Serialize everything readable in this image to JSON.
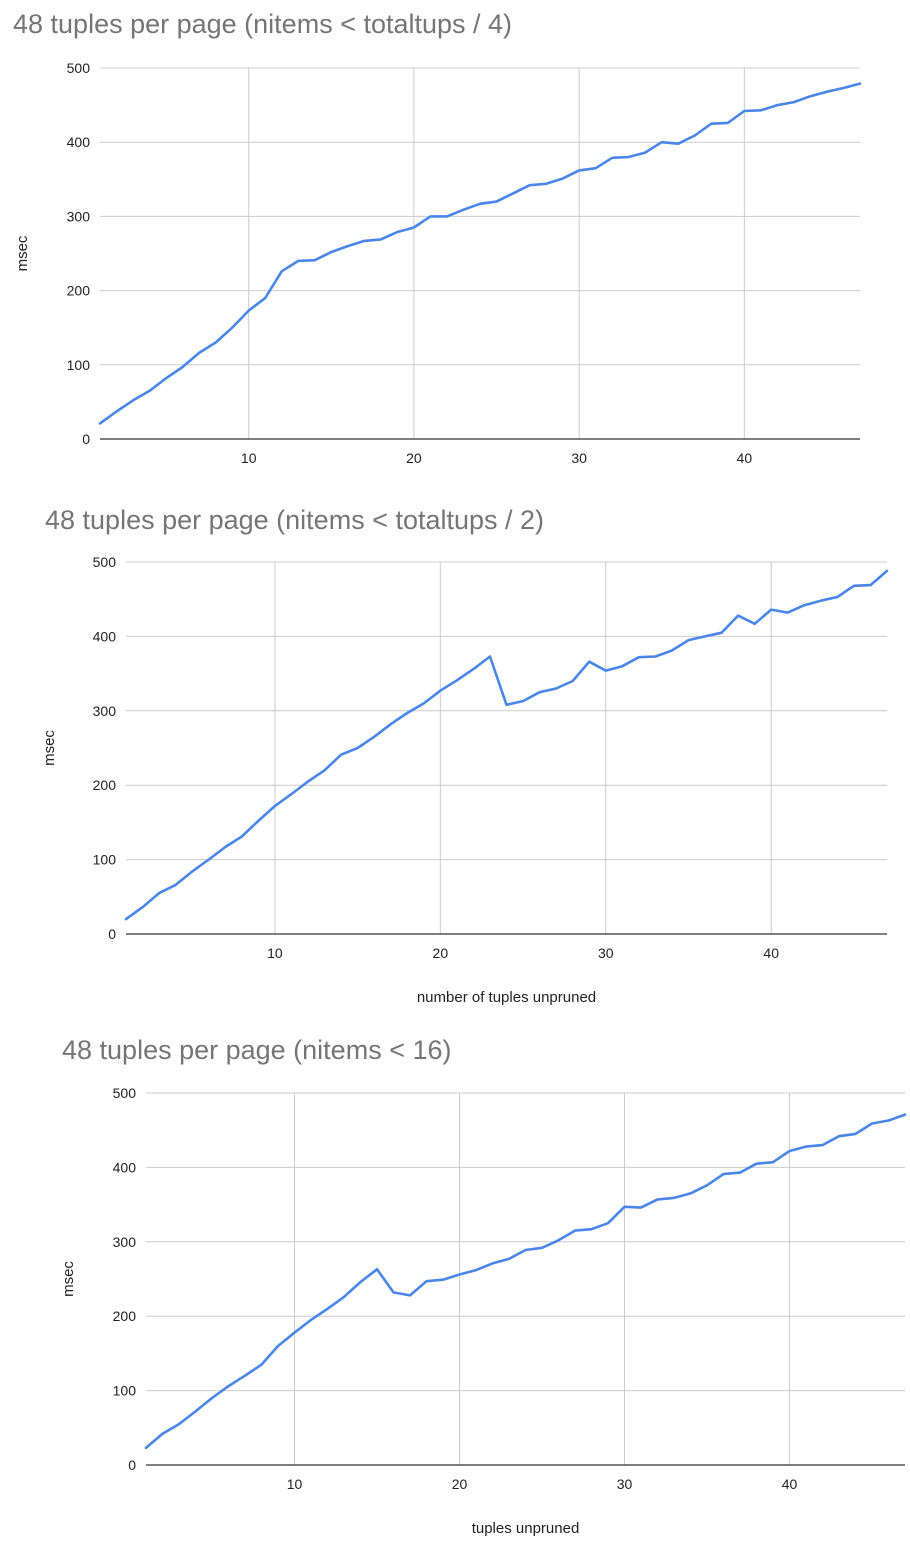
{
  "colors": {
    "series": "#4a86e8",
    "grid": "#cccccc",
    "title": "#757575",
    "axis": "#333333"
  },
  "chart_data": [
    {
      "type": "line",
      "title": "48 tuples per page (nitems < totaltups / 4)",
      "xlabel": "",
      "ylabel": "msec",
      "xlim": [
        1,
        47
      ],
      "ylim": [
        0,
        500
      ],
      "xticks": [
        10,
        20,
        30,
        40
      ],
      "yticks": [
        0,
        100,
        200,
        300,
        400,
        500
      ],
      "grid": true,
      "x": [
        1,
        2,
        3,
        4,
        5,
        6,
        7,
        8,
        9,
        10,
        11,
        12,
        13,
        14,
        15,
        16,
        17,
        18,
        19,
        20,
        21,
        22,
        23,
        24,
        25,
        26,
        27,
        28,
        29,
        30,
        31,
        32,
        33,
        34,
        35,
        36,
        37,
        38,
        39,
        40,
        41,
        42,
        43,
        44,
        45,
        46,
        47
      ],
      "series": [
        {
          "values": [
            21,
            37,
            52,
            65,
            82,
            97,
            116,
            130,
            150,
            173,
            190,
            226,
            240,
            241,
            252,
            260,
            267,
            269,
            279,
            285,
            300,
            300,
            309,
            317,
            320,
            331,
            342,
            344,
            351,
            362,
            365,
            379,
            380,
            386,
            400,
            398,
            409,
            425,
            426,
            442,
            443,
            450,
            454,
            462,
            468,
            473,
            479
          ]
        }
      ]
    },
    {
      "type": "line",
      "title": "48 tuples per page (nitems < totaltups / 2)",
      "xlabel": "number of tuples unpruned",
      "ylabel": "msec",
      "xlim": [
        1,
        47
      ],
      "ylim": [
        0,
        500
      ],
      "xticks": [
        10,
        20,
        30,
        40
      ],
      "yticks": [
        0,
        100,
        200,
        300,
        400,
        500
      ],
      "grid": true,
      "x": [
        1,
        2,
        3,
        4,
        5,
        6,
        7,
        8,
        9,
        10,
        11,
        12,
        13,
        14,
        15,
        16,
        17,
        18,
        19,
        20,
        21,
        22,
        23,
        24,
        25,
        26,
        27,
        28,
        29,
        30,
        31,
        32,
        33,
        34,
        35,
        36,
        37,
        38,
        39,
        40,
        41,
        42,
        43,
        44,
        45,
        46,
        47
      ],
      "series": [
        {
          "values": [
            20,
            36,
            55,
            66,
            84,
            100,
            117,
            131,
            152,
            172,
            188,
            205,
            220,
            241,
            250,
            265,
            282,
            297,
            310,
            327,
            341,
            356,
            373,
            308,
            313,
            325,
            330,
            340,
            366,
            354,
            360,
            372,
            373,
            381,
            395,
            400,
            405,
            428,
            417,
            436,
            432,
            442,
            448,
            453,
            468,
            469,
            488
          ]
        }
      ]
    },
    {
      "type": "line",
      "title": "48 tuples per page (nitems < 16)",
      "xlabel": "tuples unpruned",
      "ylabel": "msec",
      "xlim": [
        1,
        47
      ],
      "ylim": [
        0,
        500
      ],
      "xticks": [
        10,
        20,
        30,
        40
      ],
      "yticks": [
        0,
        100,
        200,
        300,
        400,
        500
      ],
      "grid": true,
      "x": [
        1,
        2,
        3,
        4,
        5,
        6,
        7,
        8,
        9,
        10,
        11,
        12,
        13,
        14,
        15,
        16,
        17,
        18,
        19,
        20,
        21,
        22,
        23,
        24,
        25,
        26,
        27,
        28,
        29,
        30,
        31,
        32,
        33,
        34,
        35,
        36,
        37,
        38,
        39,
        40,
        41,
        42,
        43,
        44,
        45,
        46,
        47
      ],
      "series": [
        {
          "values": [
            23,
            42,
            55,
            72,
            90,
            106,
            120,
            135,
            160,
            178,
            195,
            210,
            226,
            246,
            263,
            232,
            228,
            247,
            249,
            256,
            262,
            271,
            277,
            289,
            292,
            302,
            315,
            317,
            325,
            347,
            346,
            357,
            359,
            365,
            376,
            391,
            393,
            405,
            407,
            422,
            428,
            430,
            442,
            445,
            459,
            463,
            471
          ]
        }
      ]
    }
  ]
}
